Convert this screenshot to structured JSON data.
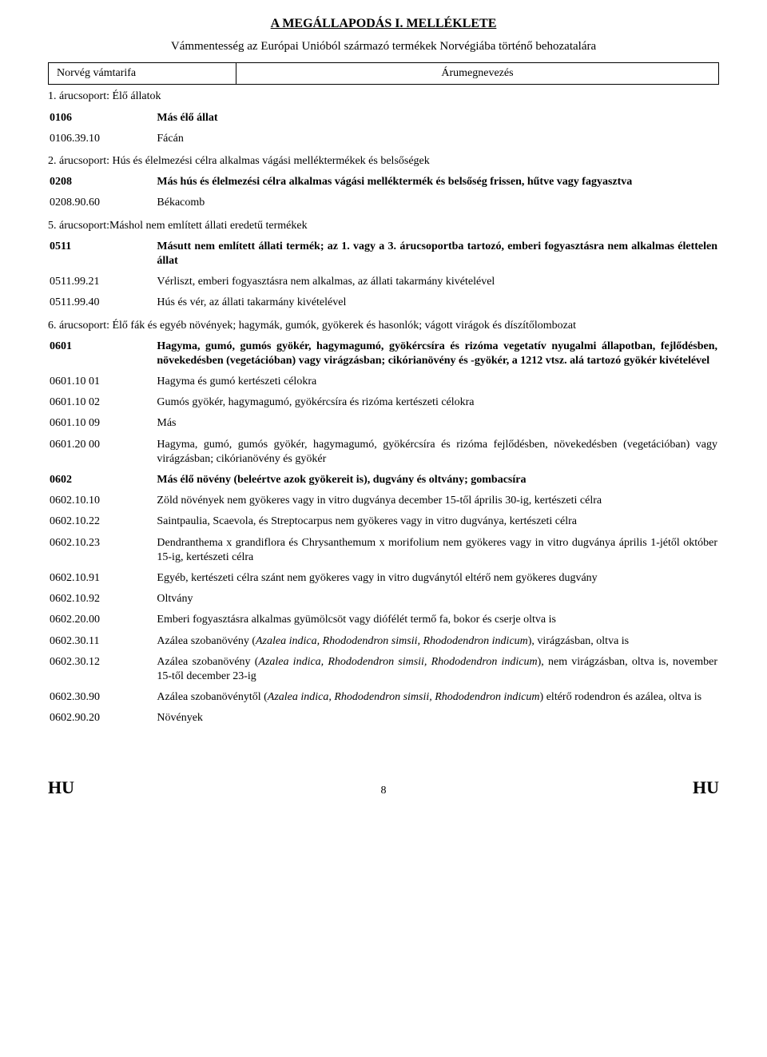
{
  "title": "A MEGÁLLAPODÁS I. MELLÉKLETE",
  "subtitle": "Vámmentesség az Európai Unióból származó termékek Norvégiába történő behozatalára",
  "header": {
    "left": "Norvég vámtarifa",
    "right": "Árumegnevezés"
  },
  "sections": [
    {
      "heading": "1. árucsoport: Élő állatok",
      "rows": [
        {
          "code": "0106",
          "desc": "Más élő állat",
          "bold": true
        },
        {
          "code": "0106.39.10",
          "desc": "Fácán"
        }
      ]
    },
    {
      "heading": "2. árucsoport: Hús és élelmezési célra alkalmas vágási melléktermékek és belsőségek",
      "rows": [
        {
          "code": "0208",
          "desc": "Más hús és élelmezési célra alkalmas vágási melléktermék és belsőség frissen, hűtve vagy fagyasztva",
          "bold": true
        },
        {
          "code": "0208.90.60",
          "desc": "Békacomb"
        }
      ]
    },
    {
      "heading": "5. árucsoport:Máshol nem említett állati eredetű termékek",
      "rows": [
        {
          "code": "0511",
          "desc": "Másutt nem említett állati termék; az 1. vagy a 3. árucsoportba tartozó, emberi fogyasztásra nem alkalmas élettelen állat",
          "bold": true
        },
        {
          "code": "0511.99.21",
          "desc": "Vérliszt, emberi fogyasztásra nem alkalmas, az állati takarmány kivételével"
        },
        {
          "code": "0511.99.40",
          "desc": "Hús és vér, az állati takarmány kivételével"
        }
      ]
    },
    {
      "heading": "6. árucsoport: Élő fák és egyéb növények; hagymák, gumók, gyökerek és hasonlók; vágott virágok és díszítőlombozat",
      "rows": [
        {
          "code": "0601",
          "desc": "Hagyma, gumó, gumós gyökér, hagymagumó, gyökércsíra és rizóma vegetatív nyugalmi állapotban, fejlődésben, növekedésben (vegetációban) vagy virágzásban; cikórianövény és -gyökér, a 1212 vtsz. alá tartozó gyökér kivételével",
          "bold": true
        },
        {
          "code": "0601.10 01",
          "desc": "Hagyma és gumó kertészeti célokra"
        },
        {
          "code": "0601.10 02",
          "desc": "Gumós gyökér, hagymagumó, gyökércsíra és rizóma kertészeti célokra"
        },
        {
          "code": "0601.10 09",
          "desc": "Más"
        },
        {
          "code": "0601.20 00",
          "desc": "Hagyma, gumó, gumós gyökér, hagymagumó, gyökércsíra és rizóma fejlődésben, növekedésben (vegetációban) vagy virágzásban; cikórianövény és gyökér"
        },
        {
          "code": "0602",
          "desc": "Más élő növény (beleértve azok gyökereit is), dugvány és oltvány; gombacsíra",
          "bold": true
        },
        {
          "code": "0602.10.10",
          "desc": "Zöld növények nem gyökeres vagy in vitro dugványa december 15-től április 30-ig, kertészeti célra"
        },
        {
          "code": "0602.10.22",
          "desc": "Saintpaulia, Scaevola, és Streptocarpus nem gyökeres vagy in vitro dugványa, kertészeti célra"
        },
        {
          "code": "0602.10.23",
          "desc": "Dendranthema x grandiflora és Chrysanthemum x morifolium nem gyökeres vagy in vitro dugványa április 1-jétől október 15-ig, kertészeti célra"
        },
        {
          "code": "0602.10.91",
          "desc": "Egyéb, kertészeti célra szánt nem gyökeres vagy in vitro dugványtól eltérő nem gyökeres dugvány"
        },
        {
          "code": "0602.10.92",
          "desc": "Oltvány"
        },
        {
          "code": "0602.20.00",
          "desc": "Emberi fogyasztásra alkalmas gyümölcsöt vagy diófélét termő fa, bokor és cserje oltva is"
        },
        {
          "code": "0602.30.11",
          "desc_html": "Azálea szobanövény (<span class=\"italic\">Azalea indica, Rhododendron simsii, Rhododendron indicum</span>), virágzásban, oltva is"
        },
        {
          "code": "0602.30.12",
          "desc_html": "Azálea szobanövény (<span class=\"italic\">Azalea indica, Rhododendron simsii, Rhododendron indicum</span>), nem virágzásban, oltva is, november 15-től december 23-ig"
        },
        {
          "code": "0602.30.90",
          "desc_html": "Azálea szobanövénytől (<span class=\"italic\">Azalea indica, Rhododendron simsii, Rhododendron indicum</span>) eltérő rodendron és azálea, oltva is"
        },
        {
          "code": "0602.90.20",
          "desc": "Növények"
        }
      ]
    }
  ],
  "footer": {
    "left": "HU",
    "page": "8",
    "right": "HU"
  }
}
